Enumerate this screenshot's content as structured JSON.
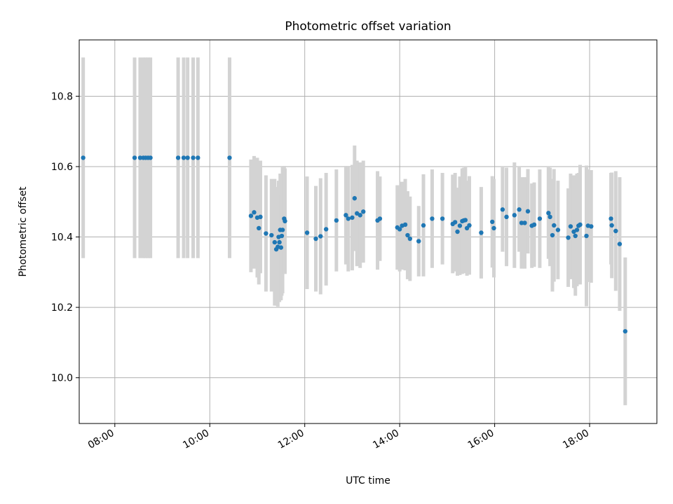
{
  "chart_data": {
    "type": "scatter",
    "title": "Photometric offset variation",
    "xlabel": "UTC time",
    "ylabel": "Photometric offset",
    "x_ticks": [
      "08:00",
      "10:00",
      "12:00",
      "14:00",
      "16:00",
      "18:00"
    ],
    "y_ticks": [
      "10.0",
      "10.2",
      "10.4",
      "10.6",
      "10.8"
    ],
    "xlim": [
      "07:15",
      "19:25"
    ],
    "ylim": [
      9.87,
      10.96
    ],
    "grid": true,
    "colors": {
      "points": "#1f77b4",
      "errorbars": "#d3d3d3"
    },
    "series": [
      {
        "x": [
          "07:20",
          "08:25",
          "08:32",
          "08:36",
          "08:39",
          "08:42",
          "08:45",
          "09:20",
          "09:27",
          "09:32",
          "09:39",
          "09:45",
          "10:25",
          "10:52",
          "10:56",
          "11:00",
          "11:02",
          "11:04",
          "11:11",
          "11:18",
          "11:22",
          "11:24",
          "11:26",
          "11:27",
          "11:28",
          "11:29",
          "11:30",
          "11:31",
          "11:32",
          "11:34",
          "11:35",
          "12:03",
          "12:14",
          "12:20",
          "12:27",
          "12:40",
          "12:52",
          "12:55",
          "13:00",
          "13:03",
          "13:06",
          "13:10",
          "13:14",
          "13:32",
          "13:35",
          "13:57",
          "14:00",
          "14:03",
          "14:07",
          "14:10",
          "14:13",
          "14:24",
          "14:30",
          "14:41",
          "14:54",
          "15:07",
          "15:10",
          "15:13",
          "15:16",
          "15:19",
          "15:21",
          "15:23",
          "15:25",
          "15:28",
          "15:43",
          "15:57",
          "15:59",
          "16:10",
          "16:15",
          "16:25",
          "16:31",
          "16:34",
          "16:38",
          "16:42",
          "16:47",
          "16:50",
          "16:57",
          "17:08",
          "17:10",
          "17:13",
          "17:15",
          "17:20",
          "17:33",
          "17:36",
          "17:40",
          "17:42",
          "17:44",
          "17:46",
          "17:48",
          "17:56",
          "17:58",
          "18:02",
          "18:27",
          "18:28",
          "18:33",
          "18:38",
          "18:45"
        ],
        "y": [
          10.625,
          10.625,
          10.625,
          10.625,
          10.625,
          10.625,
          10.625,
          10.625,
          10.625,
          10.625,
          10.625,
          10.625,
          10.625,
          10.46,
          10.47,
          10.455,
          10.425,
          10.457,
          10.41,
          10.405,
          10.385,
          10.365,
          10.372,
          10.4,
          10.385,
          10.42,
          10.37,
          10.403,
          10.42,
          10.452,
          10.445,
          10.412,
          10.395,
          10.402,
          10.422,
          10.447,
          10.462,
          10.452,
          10.455,
          10.51,
          10.467,
          10.462,
          10.472,
          10.447,
          10.452,
          10.427,
          10.422,
          10.432,
          10.435,
          10.405,
          10.395,
          10.388,
          10.433,
          10.452,
          10.452,
          10.437,
          10.442,
          10.415,
          10.432,
          10.445,
          10.447,
          10.448,
          10.425,
          10.433,
          10.412,
          10.443,
          10.425,
          10.478,
          10.457,
          10.462,
          10.478,
          10.44,
          10.44,
          10.473,
          10.432,
          10.435,
          10.452,
          10.468,
          10.457,
          10.405,
          10.433,
          10.42,
          10.398,
          10.43,
          10.415,
          10.403,
          10.42,
          10.432,
          10.435,
          10.403,
          10.432,
          10.43,
          10.452,
          10.433,
          10.417,
          10.38,
          10.132
        ],
        "err": [
          0.285,
          0.285,
          0.285,
          0.285,
          0.285,
          0.285,
          0.285,
          0.285,
          0.285,
          0.285,
          0.285,
          0.285,
          0.285,
          0.16,
          0.16,
          0.17,
          0.16,
          0.16,
          0.165,
          0.16,
          0.18,
          0.16,
          0.17,
          0.16,
          0.17,
          0.16,
          0.15,
          0.17,
          0.18,
          0.15,
          0.15,
          0.16,
          0.15,
          0.165,
          0.16,
          0.145,
          0.14,
          0.15,
          0.15,
          0.15,
          0.15,
          0.15,
          0.145,
          0.14,
          0.12,
          0.12,
          0.12,
          0.125,
          0.13,
          0.125,
          0.12,
          0.1,
          0.145,
          0.14,
          0.13,
          0.14,
          0.14,
          0.125,
          0.14,
          0.15,
          0.15,
          0.15,
          0.135,
          0.14,
          0.13,
          0.13,
          0.14,
          0.12,
          0.14,
          0.15,
          0.12,
          0.13,
          0.13,
          0.12,
          0.12,
          0.12,
          0.14,
          0.13,
          0.14,
          0.16,
          0.16,
          0.14,
          0.14,
          0.15,
          0.16,
          0.17,
          0.16,
          0.15,
          0.17,
          0.2,
          0.16,
          0.16,
          0.13,
          0.15,
          0.17,
          0.19,
          0.21
        ]
      }
    ]
  }
}
